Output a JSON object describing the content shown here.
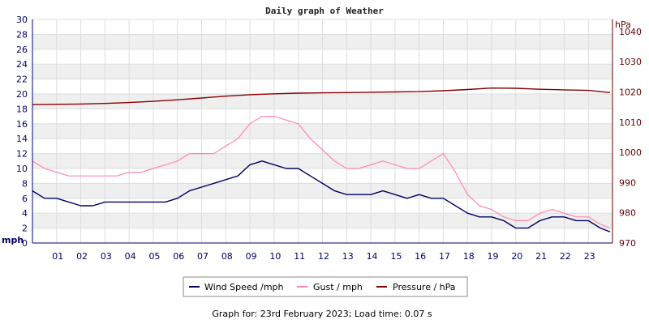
{
  "chart_data": {
    "type": "line",
    "title": "Daily graph of Weather",
    "left_axis": {
      "unit": "mph",
      "ylim": [
        0,
        30
      ],
      "ticks": [
        0,
        2,
        4,
        6,
        8,
        10,
        12,
        14,
        16,
        18,
        20,
        22,
        24,
        26,
        28,
        30
      ]
    },
    "right_axis": {
      "unit": "hPa",
      "ylim": [
        970,
        1044
      ],
      "ticks": [
        970,
        980,
        990,
        1000,
        1010,
        1020,
        1030,
        1040
      ]
    },
    "x_axis": {
      "hours": [
        "01",
        "02",
        "03",
        "04",
        "05",
        "06",
        "07",
        "08",
        "09",
        "10",
        "11",
        "12",
        "13",
        "14",
        "15",
        "16",
        "17",
        "18",
        "19",
        "20",
        "21",
        "22",
        "23"
      ]
    },
    "x_range_hours": [
      0,
      24
    ],
    "grid": true,
    "legend_placement": "bottom",
    "series": [
      {
        "name": "Wind Speed /mph",
        "axis": "left",
        "color": "#000066",
        "x": [
          0,
          0.5,
          1,
          1.5,
          2,
          2.5,
          3,
          3.5,
          4,
          4.5,
          5,
          5.5,
          6,
          6.5,
          7,
          7.5,
          8,
          8.5,
          9,
          9.5,
          10,
          10.5,
          11,
          11.5,
          12,
          12.5,
          13,
          13.5,
          14,
          14.5,
          15,
          15.5,
          16,
          16.5,
          17,
          17.5,
          18,
          18.5,
          19,
          19.5,
          20,
          20.5,
          21,
          21.5,
          22,
          22.5,
          23,
          23.5,
          23.9
        ],
        "values": [
          7,
          6,
          6,
          5.5,
          5,
          5,
          5.5,
          5.5,
          5.5,
          5.5,
          5.5,
          5.5,
          6,
          7,
          7.5,
          8,
          8.5,
          9,
          10.5,
          11,
          10.5,
          10,
          10,
          9,
          8,
          7,
          6.5,
          6.5,
          6.5,
          7,
          6.5,
          6,
          6.5,
          6,
          6,
          5,
          4,
          3.5,
          3.5,
          3,
          2,
          2,
          3,
          3.5,
          3.5,
          3,
          3,
          2,
          1.5
        ]
      },
      {
        "name": "Gust / mph",
        "axis": "left",
        "color": "#ff88aa",
        "x": [
          0,
          0.5,
          1,
          1.5,
          2,
          2.5,
          3,
          3.5,
          4,
          4.5,
          5,
          5.5,
          6,
          6.5,
          7,
          7.5,
          8,
          8.5,
          9,
          9.5,
          10,
          10.5,
          11,
          11.5,
          12,
          12.5,
          13,
          13.5,
          14,
          14.5,
          15,
          15.5,
          16,
          16.5,
          17,
          17.5,
          18,
          18.5,
          19,
          19.5,
          20,
          20.5,
          21,
          21.5,
          22,
          22.5,
          23,
          23.5,
          23.9
        ],
        "values": [
          11,
          10,
          9.5,
          9,
          9,
          9,
          9,
          9,
          9.5,
          9.5,
          10,
          10.5,
          11,
          12,
          12,
          12,
          13,
          14,
          16,
          17,
          17,
          16.5,
          16,
          14,
          12.5,
          11,
          10,
          10,
          10.5,
          11,
          10.5,
          10,
          10,
          11,
          12,
          9.5,
          6.5,
          5,
          4.5,
          3.5,
          3,
          3,
          4,
          4.5,
          4,
          3.5,
          3.5,
          2.5,
          2
        ]
      },
      {
        "name": "Pressure / hPa",
        "axis": "right",
        "color": "#880000",
        "x": [
          0,
          1,
          2,
          3,
          4,
          5,
          6,
          7,
          8,
          9,
          10,
          11,
          12,
          13,
          14,
          15,
          16,
          17,
          18,
          19,
          20,
          21,
          22,
          23,
          23.9
        ],
        "values": [
          1015.8,
          1015.9,
          1016,
          1016.2,
          1016.5,
          1016.9,
          1017.4,
          1018,
          1018.6,
          1019.1,
          1019.4,
          1019.6,
          1019.7,
          1019.8,
          1019.9,
          1020,
          1020.1,
          1020.4,
          1020.8,
          1021.3,
          1021.2,
          1020.9,
          1020.7,
          1020.5,
          1019.8
        ]
      }
    ]
  },
  "footer": {
    "graph_for": "Graph for: 23rd February 2023; Load time: 0.07 s"
  }
}
